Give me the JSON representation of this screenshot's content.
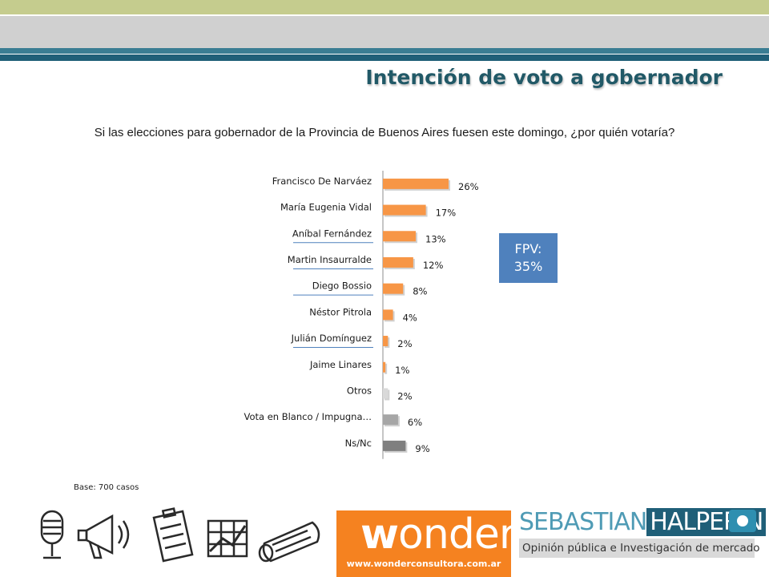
{
  "header": {
    "title": "Intención de voto a gobernador",
    "question": "Si las elecciones para gobernador de la Provincia de Buenos Aires fuesen este domingo, ¿por quién votaría?"
  },
  "colors": {
    "fpv_bar": "#f79646",
    "otros_bar": "#d9d9d9",
    "blanco_bar": "#a6a6a6",
    "nsnc_bar": "#7f7f7f",
    "fpv_box": "#4f81bd",
    "title": "#215967",
    "underline": "#4f81bd"
  },
  "chart_data": {
    "type": "bar",
    "orientation": "horizontal",
    "categories": [
      "Francisco De Narváez",
      "María Eugenia Vidal",
      "Aníbal Fernández",
      "Martin Insaurralde",
      "Diego Bossio",
      "Néstor Pitrola",
      "Julián Domínguez",
      "Jaime Linares",
      "Otros",
      "Vota en Blanco / Impugna…",
      "Ns/Nc"
    ],
    "values": [
      26,
      17,
      13,
      12,
      8,
      4,
      2,
      1,
      2,
      6,
      9
    ],
    "value_labels": [
      "26%",
      "17%",
      "13%",
      "12%",
      "8%",
      "4%",
      "2%",
      "1%",
      "2%",
      "6%",
      "9%"
    ],
    "bar_color_groups": [
      "fpv_bar",
      "fpv_bar",
      "fpv_bar",
      "fpv_bar",
      "fpv_bar",
      "fpv_bar",
      "fpv_bar",
      "fpv_bar",
      "otros_bar",
      "blanco_bar",
      "nsnc_bar"
    ],
    "underlined": [
      false,
      false,
      true,
      true,
      true,
      false,
      true,
      false,
      false,
      false,
      false
    ],
    "xlim": [
      0,
      30
    ],
    "grid": false,
    "legend": "none"
  },
  "fpv_box": {
    "line1": "FPV:",
    "line2": "35%"
  },
  "footer": {
    "base": "Base: 700 casos",
    "wonder_logo_w": "w",
    "wonder_logo_rest": "onder",
    "wonder_url": "www.wonderconsultora.com.ar",
    "halperin_first": "SEBASTIAN",
    "halperin_last": "HALPERIN",
    "halperin_tagline": "Opinión pública e Investigación de mercado"
  },
  "icons": [
    "microphone-icon",
    "megaphone-icon",
    "clipboard-icon",
    "line-chart-icon",
    "newspaper-icon"
  ]
}
